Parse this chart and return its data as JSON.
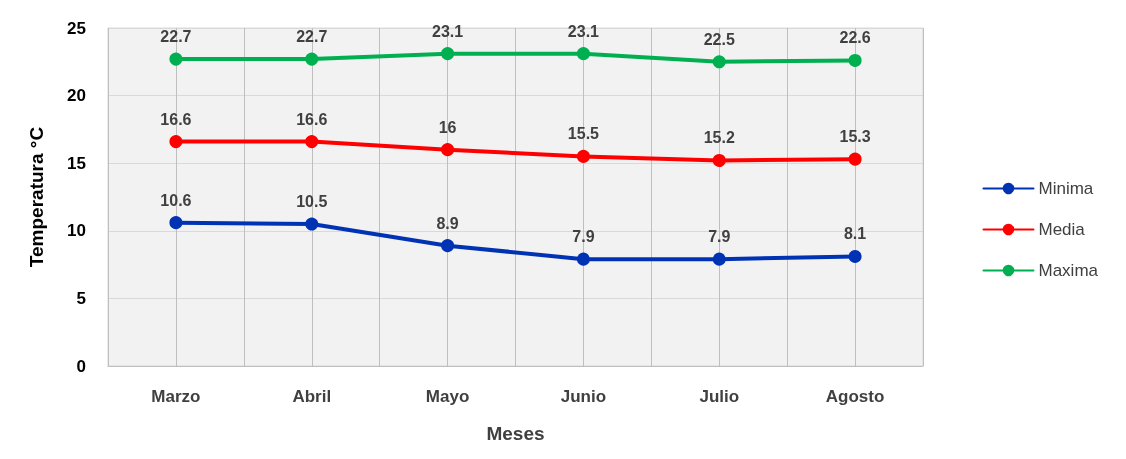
{
  "chart_data": {
    "type": "line",
    "xlabel": "Meses",
    "ylabel": "Temperatura °C",
    "categories": [
      "Marzo",
      "Abril",
      "Mayo",
      "Junio",
      "Julio",
      "Agosto"
    ],
    "series": [
      {
        "name": "Minima",
        "color": "#0033b4",
        "values": [
          10.6,
          10.5,
          8.9,
          7.9,
          7.9,
          8.1
        ]
      },
      {
        "name": "Media",
        "color": "#ff0000",
        "values": [
          16.6,
          16.6,
          16,
          15.5,
          15.2,
          15.3
        ]
      },
      {
        "name": "Maxima",
        "color": "#00b050",
        "values": [
          22.7,
          22.7,
          23.1,
          23.1,
          22.5,
          22.6
        ]
      }
    ],
    "ylim": [
      0,
      25
    ],
    "yticks": [
      0,
      5,
      10,
      15,
      20,
      25
    ],
    "grid": true,
    "legend": "right",
    "marker": "circle",
    "line_style": "solid",
    "data_labels": true
  }
}
